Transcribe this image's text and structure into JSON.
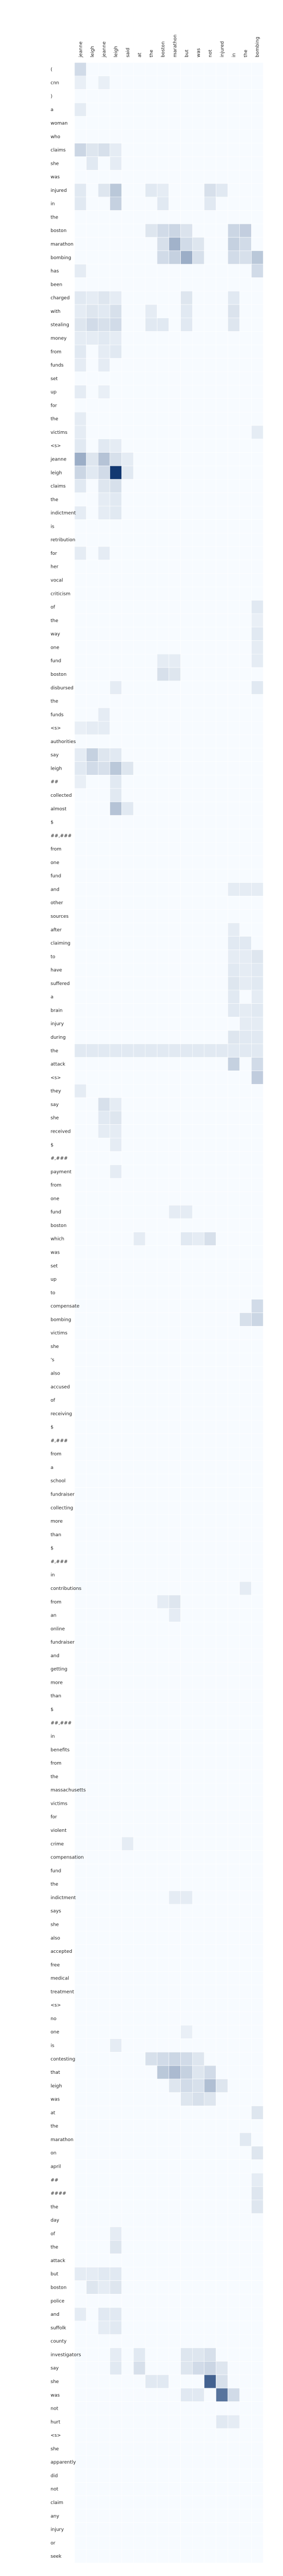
{
  "chart_data": {
    "type": "heatmap",
    "x_labels": [
      "jeanne",
      "leigh",
      "jeanne",
      "leigh",
      "said",
      "at",
      "the",
      "boston",
      "marathon",
      "but",
      "was",
      "not",
      "injured",
      "in",
      "the",
      "bombing"
    ],
    "y_labels": [
      "(",
      "cnn",
      ")",
      "a",
      "woman",
      "who",
      "claims",
      "she",
      "was",
      "injured",
      "in",
      "the",
      "boston",
      "marathon",
      "bombing",
      "has",
      "been",
      "charged",
      "with",
      "stealing",
      "money",
      "from",
      "funds",
      "set",
      "up",
      "for",
      "the",
      "victims",
      "<s>",
      "jeanne",
      "leigh",
      "claims",
      "the",
      "indictment",
      "is",
      "retribution",
      "for",
      "her",
      "vocal",
      "criticism",
      "of",
      "the",
      "way",
      "one",
      "fund",
      "boston",
      "disbursed",
      "the",
      "funds",
      "<s>",
      "authorities",
      "say",
      "leigh",
      "##",
      "collected",
      "almost",
      "$",
      "##,###",
      "from",
      "one",
      "fund",
      "and",
      "other",
      "sources",
      "after",
      "claiming",
      "to",
      "have",
      "suffered",
      "a",
      "brain",
      "injury",
      "during",
      "the",
      "attack",
      "<s>",
      "they",
      "say",
      "she",
      "received",
      "$",
      "#,###",
      "payment",
      "from",
      "one",
      "fund",
      "boston",
      "which",
      "was",
      "set",
      "up",
      "to",
      "compensate",
      "bombing",
      "victims",
      "she",
      "'s",
      "also",
      "accused",
      "of",
      "receiving",
      "$",
      "#,###",
      "from",
      "a",
      "school",
      "fundraiser",
      "collecting",
      "more",
      "than",
      "$",
      "#,###",
      "in",
      "contributions",
      "from",
      "an",
      "online",
      "fundraiser",
      "and",
      "getting",
      "more",
      "than",
      "$",
      "##,###",
      "in",
      "benefits",
      "from",
      "the",
      "massachusetts",
      "victims",
      "for",
      "violent",
      "crime",
      "compensation",
      "fund",
      "the",
      "indictment",
      "says",
      "she",
      "also",
      "accepted",
      "free",
      "medical",
      "treatment",
      "<s>",
      "no",
      "one",
      "is",
      "contesting",
      "that",
      "leigh",
      "was",
      "at",
      "the",
      "marathon",
      "on",
      "april",
      "##",
      "####",
      "the",
      "day",
      "of",
      "the",
      "attack",
      "but",
      "boston",
      "police",
      "and",
      "suffolk",
      "county",
      "investigators",
      "say",
      "she",
      "was",
      "not",
      "hurt",
      "<s>",
      "she",
      "apparently",
      "did",
      "not",
      "claim",
      "any",
      "injury",
      "or",
      "seek"
    ],
    "color_scale": {
      "low": "#f7fbff",
      "high": "#08306b"
    },
    "grid": false,
    "legend": "none",
    "value_range": [
      0,
      1
    ],
    "cells": [
      [
        0,
        0,
        0.1
      ],
      [
        0,
        1,
        0.03
      ],
      [
        2,
        1,
        0.03
      ],
      [
        0,
        3,
        0.04
      ],
      [
        0,
        6,
        0.12
      ],
      [
        1,
        6,
        0.06
      ],
      [
        2,
        6,
        0.08
      ],
      [
        3,
        6,
        0.04
      ],
      [
        1,
        7,
        0.05
      ],
      [
        3,
        7,
        0.04
      ],
      [
        0,
        9,
        0.05
      ],
      [
        2,
        9,
        0.06
      ],
      [
        3,
        9,
        0.18
      ],
      [
        6,
        9,
        0.05
      ],
      [
        7,
        9,
        0.04
      ],
      [
        11,
        9,
        0.08
      ],
      [
        12,
        9,
        0.05
      ],
      [
        0,
        10,
        0.05
      ],
      [
        3,
        10,
        0.14
      ],
      [
        7,
        10,
        0.05
      ],
      [
        11,
        10,
        0.05
      ],
      [
        6,
        12,
        0.06
      ],
      [
        7,
        12,
        0.1
      ],
      [
        8,
        12,
        0.12
      ],
      [
        9,
        12,
        0.07
      ],
      [
        13,
        12,
        0.12
      ],
      [
        14,
        12,
        0.15
      ],
      [
        7,
        13,
        0.08
      ],
      [
        8,
        13,
        0.28
      ],
      [
        9,
        13,
        0.1
      ],
      [
        10,
        13,
        0.06
      ],
      [
        13,
        13,
        0.14
      ],
      [
        14,
        13,
        0.1
      ],
      [
        7,
        14,
        0.1
      ],
      [
        8,
        14,
        0.14
      ],
      [
        9,
        14,
        0.3
      ],
      [
        10,
        14,
        0.08
      ],
      [
        13,
        14,
        0.1
      ],
      [
        14,
        14,
        0.08
      ],
      [
        15,
        14,
        0.18
      ],
      [
        0,
        15,
        0.04
      ],
      [
        15,
        15,
        0.1
      ],
      [
        0,
        17,
        0.05
      ],
      [
        1,
        17,
        0.04
      ],
      [
        2,
        17,
        0.06
      ],
      [
        3,
        17,
        0.04
      ],
      [
        9,
        17,
        0.06
      ],
      [
        13,
        17,
        0.05
      ],
      [
        0,
        18,
        0.04
      ],
      [
        1,
        18,
        0.06
      ],
      [
        2,
        18,
        0.05
      ],
      [
        3,
        18,
        0.08
      ],
      [
        6,
        18,
        0.04
      ],
      [
        9,
        18,
        0.05
      ],
      [
        13,
        18,
        0.07
      ],
      [
        0,
        19,
        0.06
      ],
      [
        1,
        19,
        0.1
      ],
      [
        2,
        19,
        0.08
      ],
      [
        3,
        19,
        0.1
      ],
      [
        6,
        19,
        0.05
      ],
      [
        7,
        19,
        0.05
      ],
      [
        9,
        19,
        0.05
      ],
      [
        13,
        19,
        0.06
      ],
      [
        0,
        20,
        0.04
      ],
      [
        1,
        20,
        0.04
      ],
      [
        2,
        20,
        0.05
      ],
      [
        3,
        20,
        0.04
      ],
      [
        0,
        21,
        0.05
      ],
      [
        2,
        21,
        0.04
      ],
      [
        3,
        21,
        0.05
      ],
      [
        0,
        22,
        0.04
      ],
      [
        2,
        22,
        0.04
      ],
      [
        0,
        24,
        0.04
      ],
      [
        2,
        24,
        0.03
      ],
      [
        0,
        26,
        0.04
      ],
      [
        0,
        27,
        0.04
      ],
      [
        15,
        27,
        0.04
      ],
      [
        0,
        28,
        0.05
      ],
      [
        2,
        28,
        0.05
      ],
      [
        3,
        28,
        0.04
      ],
      [
        0,
        29,
        0.3
      ],
      [
        1,
        29,
        0.06
      ],
      [
        2,
        29,
        0.2
      ],
      [
        3,
        29,
        0.08
      ],
      [
        4,
        29,
        0.04
      ],
      [
        0,
        30,
        0.12
      ],
      [
        1,
        30,
        0.05
      ],
      [
        2,
        30,
        0.1
      ],
      [
        3,
        30,
        0.95
      ],
      [
        4,
        30,
        0.05
      ],
      [
        0,
        31,
        0.05
      ],
      [
        2,
        31,
        0.06
      ],
      [
        3,
        31,
        0.08
      ],
      [
        2,
        32,
        0.04
      ],
      [
        3,
        32,
        0.05
      ],
      [
        0,
        33,
        0.04
      ],
      [
        2,
        33,
        0.04
      ],
      [
        3,
        33,
        0.05
      ],
      [
        0,
        36,
        0.04
      ],
      [
        2,
        36,
        0.04
      ],
      [
        15,
        40,
        0.05
      ],
      [
        15,
        41,
        0.03
      ],
      [
        15,
        42,
        0.05
      ],
      [
        15,
        43,
        0.04
      ],
      [
        7,
        44,
        0.04
      ],
      [
        8,
        44,
        0.04
      ],
      [
        15,
        44,
        0.04
      ],
      [
        7,
        45,
        0.08
      ],
      [
        8,
        45,
        0.06
      ],
      [
        3,
        46,
        0.04
      ],
      [
        15,
        46,
        0.05
      ],
      [
        2,
        48,
        0.04
      ],
      [
        0,
        49,
        0.03
      ],
      [
        1,
        49,
        0.04
      ],
      [
        2,
        49,
        0.04
      ],
      [
        0,
        51,
        0.04
      ],
      [
        1,
        51,
        0.14
      ],
      [
        2,
        51,
        0.06
      ],
      [
        3,
        51,
        0.05
      ],
      [
        0,
        52,
        0.05
      ],
      [
        1,
        52,
        0.1
      ],
      [
        2,
        52,
        0.08
      ],
      [
        3,
        52,
        0.18
      ],
      [
        4,
        52,
        0.06
      ],
      [
        0,
        53,
        0.03
      ],
      [
        3,
        53,
        0.05
      ],
      [
        3,
        54,
        0.05
      ],
      [
        3,
        55,
        0.2
      ],
      [
        4,
        55,
        0.05
      ],
      [
        13,
        61,
        0.04
      ],
      [
        14,
        61,
        0.04
      ],
      [
        15,
        61,
        0.04
      ],
      [
        13,
        64,
        0.04
      ],
      [
        13,
        65,
        0.05
      ],
      [
        14,
        65,
        0.05
      ],
      [
        13,
        66,
        0.04
      ],
      [
        14,
        66,
        0.04
      ],
      [
        15,
        66,
        0.06
      ],
      [
        13,
        67,
        0.05
      ],
      [
        14,
        67,
        0.04
      ],
      [
        15,
        67,
        0.05
      ],
      [
        13,
        68,
        0.06
      ],
      [
        14,
        68,
        0.04
      ],
      [
        15,
        68,
        0.05
      ],
      [
        13,
        69,
        0.05
      ],
      [
        15,
        69,
        0.04
      ],
      [
        13,
        70,
        0.05
      ],
      [
        14,
        70,
        0.04
      ],
      [
        15,
        70,
        0.05
      ],
      [
        14,
        71,
        0.04
      ],
      [
        15,
        71,
        0.04
      ],
      [
        13,
        72,
        0.06
      ],
      [
        14,
        72,
        0.05
      ],
      [
        15,
        72,
        0.05
      ],
      [
        0,
        73,
        0.05
      ],
      [
        1,
        73,
        0.05
      ],
      [
        2,
        73,
        0.05
      ],
      [
        3,
        73,
        0.05
      ],
      [
        4,
        73,
        0.05
      ],
      [
        5,
        73,
        0.05
      ],
      [
        6,
        73,
        0.05
      ],
      [
        7,
        73,
        0.05
      ],
      [
        8,
        73,
        0.05
      ],
      [
        9,
        73,
        0.05
      ],
      [
        10,
        73,
        0.05
      ],
      [
        11,
        73,
        0.05
      ],
      [
        12,
        73,
        0.05
      ],
      [
        13,
        73,
        0.05
      ],
      [
        14,
        73,
        0.05
      ],
      [
        15,
        73,
        0.05
      ],
      [
        13,
        74,
        0.14
      ],
      [
        15,
        74,
        0.1
      ],
      [
        15,
        75,
        0.16
      ],
      [
        0,
        76,
        0.04
      ],
      [
        2,
        77,
        0.08
      ],
      [
        3,
        77,
        0.04
      ],
      [
        2,
        78,
        0.05
      ],
      [
        3,
        78,
        0.06
      ],
      [
        2,
        79,
        0.04
      ],
      [
        3,
        79,
        0.04
      ],
      [
        3,
        80,
        0.04
      ],
      [
        3,
        82,
        0.04
      ],
      [
        8,
        85,
        0.04
      ],
      [
        9,
        85,
        0.04
      ],
      [
        5,
        87,
        0.04
      ],
      [
        9,
        87,
        0.05
      ],
      [
        10,
        87,
        0.04
      ],
      [
        11,
        87,
        0.08
      ],
      [
        15,
        92,
        0.1
      ],
      [
        14,
        93,
        0.08
      ],
      [
        15,
        93,
        0.12
      ],
      [
        14,
        113,
        0.04
      ],
      [
        7,
        114,
        0.04
      ],
      [
        8,
        114,
        0.06
      ],
      [
        8,
        115,
        0.04
      ],
      [
        4,
        132,
        0.04
      ],
      [
        8,
        136,
        0.04
      ],
      [
        9,
        136,
        0.04
      ],
      [
        9,
        146,
        0.03
      ],
      [
        3,
        147,
        0.04
      ],
      [
        6,
        148,
        0.08
      ],
      [
        7,
        148,
        0.1
      ],
      [
        8,
        148,
        0.12
      ],
      [
        9,
        148,
        0.1
      ],
      [
        10,
        148,
        0.06
      ],
      [
        7,
        149,
        0.18
      ],
      [
        8,
        149,
        0.24
      ],
      [
        9,
        149,
        0.14
      ],
      [
        10,
        149,
        0.06
      ],
      [
        11,
        149,
        0.1
      ],
      [
        8,
        150,
        0.06
      ],
      [
        9,
        150,
        0.1
      ],
      [
        10,
        150,
        0.08
      ],
      [
        11,
        150,
        0.22
      ],
      [
        12,
        150,
        0.06
      ],
      [
        9,
        151,
        0.06
      ],
      [
        10,
        151,
        0.08
      ],
      [
        11,
        151,
        0.06
      ],
      [
        15,
        152,
        0.06
      ],
      [
        14,
        154,
        0.05
      ],
      [
        15,
        155,
        0.06
      ],
      [
        15,
        157,
        0.04
      ],
      [
        15,
        158,
        0.06
      ],
      [
        15,
        159,
        0.06
      ],
      [
        3,
        161,
        0.04
      ],
      [
        3,
        162,
        0.06
      ],
      [
        0,
        164,
        0.04
      ],
      [
        1,
        164,
        0.04
      ],
      [
        2,
        164,
        0.05
      ],
      [
        3,
        164,
        0.05
      ],
      [
        1,
        165,
        0.06
      ],
      [
        2,
        165,
        0.04
      ],
      [
        3,
        165,
        0.06
      ],
      [
        0,
        167,
        0.04
      ],
      [
        2,
        167,
        0.05
      ],
      [
        3,
        167,
        0.05
      ],
      [
        2,
        168,
        0.04
      ],
      [
        3,
        168,
        0.05
      ],
      [
        3,
        170,
        0.04
      ],
      [
        5,
        170,
        0.05
      ],
      [
        9,
        170,
        0.06
      ],
      [
        10,
        170,
        0.06
      ],
      [
        11,
        170,
        0.08
      ],
      [
        3,
        171,
        0.05
      ],
      [
        5,
        171,
        0.08
      ],
      [
        9,
        171,
        0.06
      ],
      [
        10,
        171,
        0.1
      ],
      [
        11,
        171,
        0.12
      ],
      [
        12,
        171,
        0.06
      ],
      [
        6,
        172,
        0.05
      ],
      [
        7,
        172,
        0.05
      ],
      [
        11,
        172,
        0.7
      ],
      [
        12,
        172,
        0.08
      ],
      [
        9,
        173,
        0.05
      ],
      [
        10,
        173,
        0.05
      ],
      [
        12,
        173,
        0.6
      ],
      [
        13,
        173,
        0.1
      ],
      [
        12,
        175,
        0.05
      ],
      [
        13,
        175,
        0.04
      ]
    ]
  }
}
